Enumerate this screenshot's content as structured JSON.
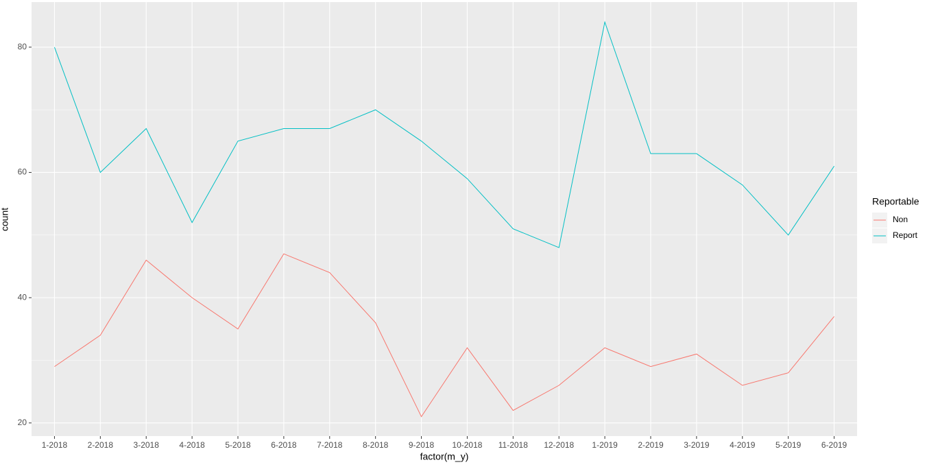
{
  "chart_data": {
    "type": "line",
    "x_label": "factor(m_y)",
    "y_label": "count",
    "categories": [
      "1-2018",
      "2-2018",
      "3-2018",
      "4-2018",
      "5-2018",
      "6-2018",
      "7-2018",
      "8-2018",
      "9-2018",
      "10-2018",
      "11-2018",
      "12-2018",
      "1-2019",
      "2-2019",
      "3-2019",
      "4-2019",
      "5-2019",
      "6-2019"
    ],
    "series": [
      {
        "name": "Non",
        "color": "#f8766d",
        "values": [
          29,
          34,
          46,
          40,
          35,
          47,
          44,
          36,
          21,
          32,
          22,
          26,
          32,
          29,
          31,
          26,
          28,
          37
        ]
      },
      {
        "name": "Report",
        "color": "#00bfc4",
        "values": [
          80,
          60,
          67,
          52,
          65,
          67,
          67,
          70,
          65,
          59,
          51,
          48,
          84,
          63,
          63,
          58,
          50,
          61
        ]
      }
    ],
    "legend_title": "Reportable",
    "ylim": [
      17.9,
      87.2
    ],
    "yticks": [
      20,
      40,
      60,
      80
    ],
    "grid": true,
    "legend_position": "right"
  }
}
